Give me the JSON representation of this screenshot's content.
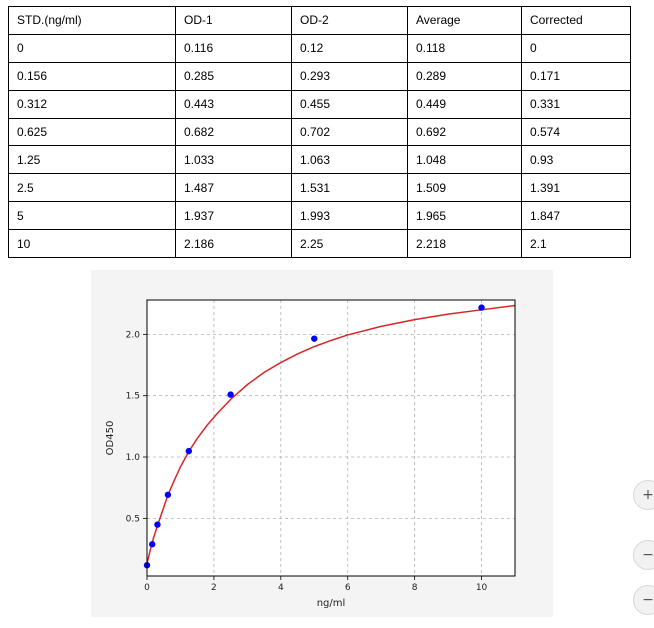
{
  "table": {
    "headers": [
      "STD.(ng/ml)",
      "OD-1",
      "OD-2",
      "Average",
      "Corrected"
    ],
    "rows": [
      [
        "0",
        "0.116",
        "0.12",
        "0.118",
        "0"
      ],
      [
        "0.156",
        "0.285",
        "0.293",
        "0.289",
        "0.171"
      ],
      [
        "0.312",
        "0.443",
        "0.455",
        "0.449",
        "0.331"
      ],
      [
        "0.625",
        "0.682",
        "0.702",
        "0.692",
        "0.574"
      ],
      [
        "1.25",
        "1.033",
        "1.063",
        "1.048",
        "0.93"
      ],
      [
        "2.5",
        "1.487",
        "1.531",
        "1.509",
        "1.391"
      ],
      [
        "5",
        "1.937",
        "1.993",
        "1.965",
        "1.847"
      ],
      [
        "10",
        "2.186",
        "2.25",
        "2.218",
        "2.1"
      ]
    ]
  },
  "chart_data": {
    "type": "scatter",
    "title": "",
    "xlabel": "ng/ml",
    "ylabel": "OD450",
    "xlim": [
      0,
      11
    ],
    "ylim": [
      0.03,
      2.28
    ],
    "xticks": [
      0,
      2,
      4,
      6,
      8,
      10
    ],
    "yticks": [
      0.5,
      1.0,
      1.5,
      2.0
    ],
    "xtick_labels": [
      "0",
      "2",
      "4",
      "6",
      "8",
      "10"
    ],
    "ytick_labels": [
      "0.5",
      "1.0",
      "1.5",
      "2.0"
    ],
    "grid": true,
    "series": [
      {
        "type": "scatter",
        "color": "#0000ff",
        "x": [
          0,
          0.156,
          0.312,
          0.625,
          1.25,
          2.5,
          5,
          10
        ],
        "y": [
          0.118,
          0.289,
          0.449,
          0.692,
          1.048,
          1.509,
          1.965,
          2.218
        ]
      },
      {
        "type": "line",
        "color": "#d62728",
        "x": [
          0,
          0.1,
          0.2,
          0.3,
          0.45,
          0.625,
          0.8,
          1.0,
          1.25,
          1.5,
          1.8,
          2.1,
          2.5,
          3.0,
          3.5,
          4.0,
          4.5,
          5.0,
          5.5,
          6.0,
          7.0,
          8.0,
          9.0,
          10.0,
          11.0
        ],
        "y": [
          0.13,
          0.245,
          0.345,
          0.43,
          0.55,
          0.69,
          0.8,
          0.92,
          1.045,
          1.15,
          1.26,
          1.355,
          1.47,
          1.59,
          1.69,
          1.77,
          1.84,
          1.9,
          1.95,
          1.995,
          2.065,
          2.12,
          2.165,
          2.2,
          2.235
        ]
      }
    ]
  },
  "side_controls": {
    "zoom_in_icon": "zoom-in-icon",
    "zoom_out_icon": "zoom-out-icon",
    "zoom_in_glyph": "+",
    "zoom_out_glyph": "−",
    "reset_glyph": "−"
  }
}
